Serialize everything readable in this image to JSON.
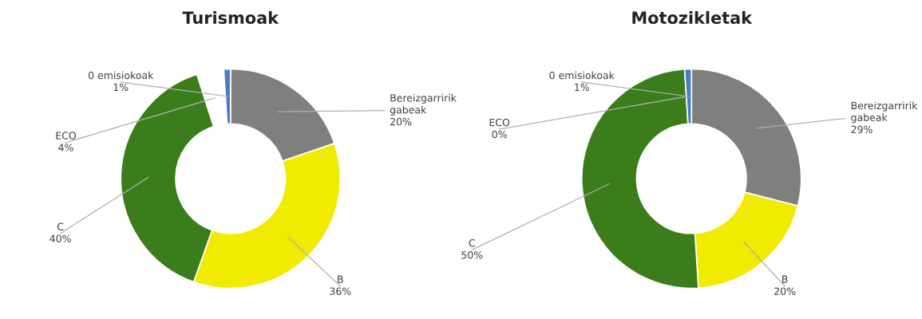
{
  "chart_data": [
    {
      "type": "donut",
      "title": "Turismoak",
      "categories": [
        "Bereizgarririk\ngabeak",
        "B",
        "C",
        "ECO",
        "0 emisiokoak"
      ],
      "values": [
        20,
        36,
        40,
        4,
        1
      ],
      "colors": [
        "#7f7f7f",
        "#f0eb00",
        "#3a7d1a",
        "#ffffff",
        "#4a7cc4"
      ],
      "value_labels": [
        "20%",
        "36%",
        "40%",
        "4%",
        "1%"
      ]
    },
    {
      "type": "donut",
      "title": "Motozikletak",
      "categories": [
        "Bereizgarririk\ngabeak",
        "B",
        "C",
        "ECO",
        "0 emisiokoak"
      ],
      "values": [
        29,
        20,
        50,
        0,
        1
      ],
      "colors": [
        "#7f7f7f",
        "#f0eb00",
        "#3a7d1a",
        "#a9d18e",
        "#4a7cc4"
      ],
      "value_labels": [
        "29%",
        "20%",
        "50%",
        "0%",
        "1%"
      ]
    }
  ]
}
